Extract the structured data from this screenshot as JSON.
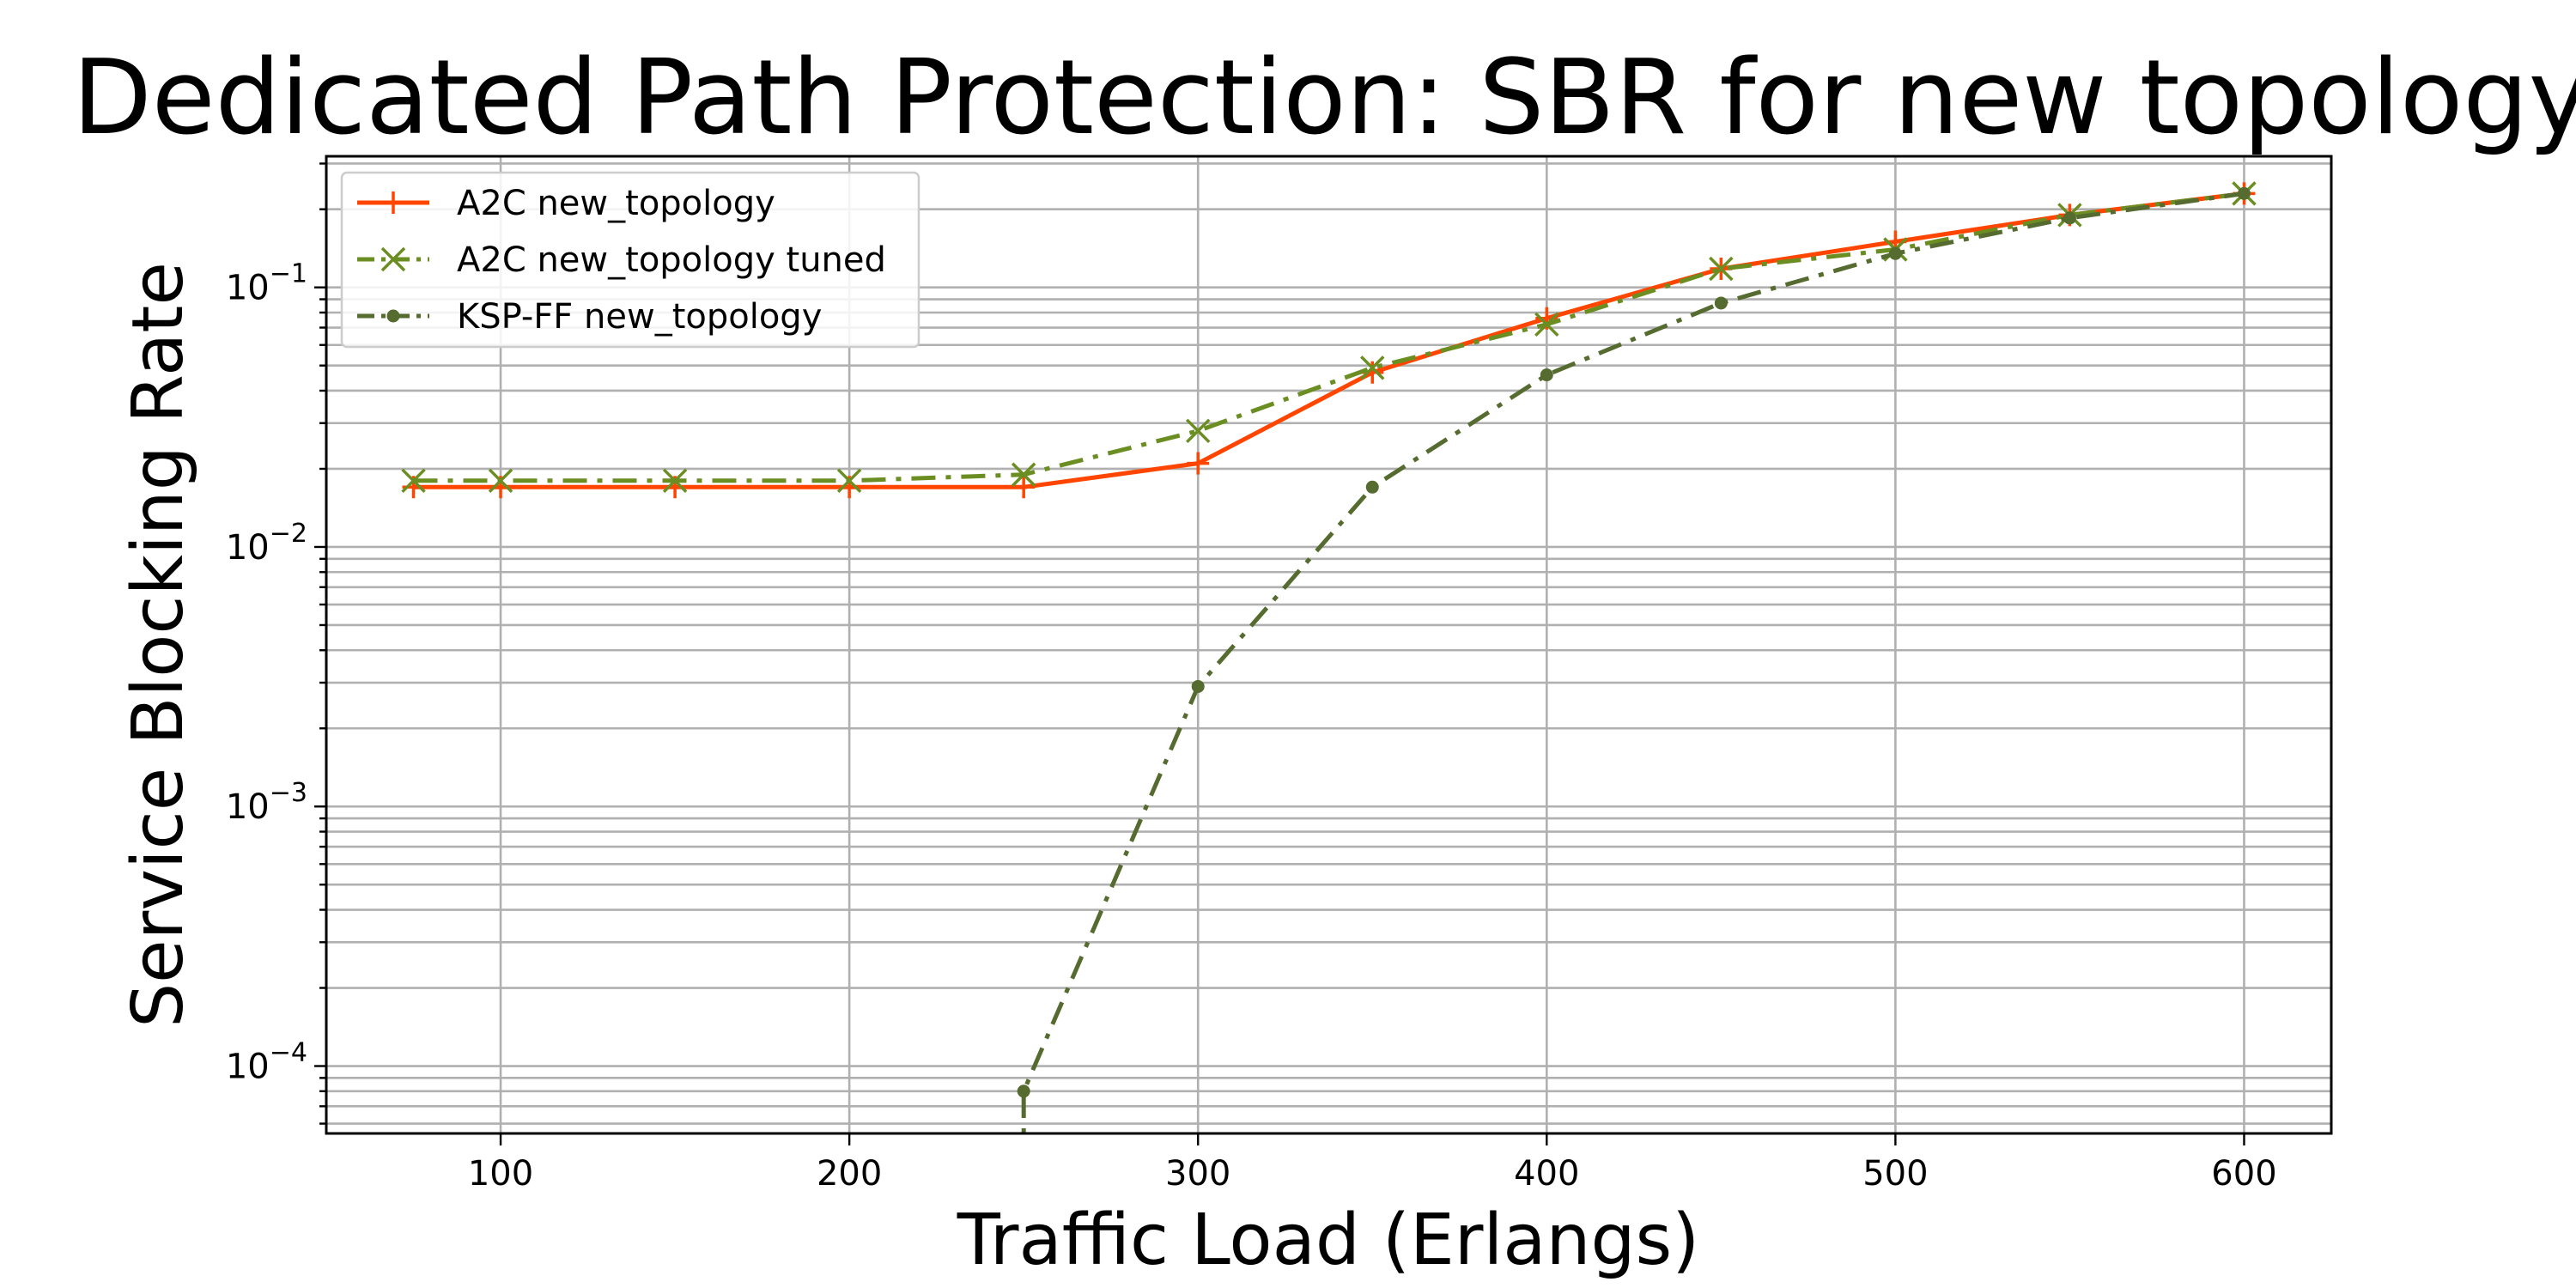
{
  "chart_data": {
    "type": "line",
    "title": "Dedicated Path Protection: SBR for new topology",
    "xlabel": "Traffic Load (Erlangs)",
    "ylabel": "Service Blocking Rate",
    "yscale": "log",
    "grid": true,
    "grid_minor": true,
    "legend_position": "top-left",
    "xlim": [
      50,
      625
    ],
    "ylim": [
      5.5e-05,
      0.32
    ],
    "x_ticks": [
      100,
      200,
      300,
      400,
      500,
      600
    ],
    "x_tick_labels": [
      "100",
      "200",
      "300",
      "400",
      "500",
      "600"
    ],
    "y_ticks": [
      0.0001,
      0.001,
      0.01,
      0.1
    ],
    "y_tick_labels": [
      {
        "base": "10",
        "exp": "−4"
      },
      {
        "base": "10",
        "exp": "−3"
      },
      {
        "base": "10",
        "exp": "−2"
      },
      {
        "base": "10",
        "exp": "−1"
      }
    ],
    "series": [
      {
        "name": "A2C new_topology",
        "color": "#ff4500",
        "line_style": "solid",
        "marker": "plus",
        "x": [
          75,
          100,
          150,
          200,
          250,
          300,
          350,
          400,
          450,
          500,
          550,
          600
        ],
        "values": [
          0.017,
          0.017,
          0.017,
          0.017,
          0.017,
          0.021,
          0.047,
          0.076,
          0.118,
          0.15,
          0.19,
          0.23
        ]
      },
      {
        "name": "A2C new_topology tuned",
        "color": "#6b8e23",
        "line_style": "dashdot",
        "marker": "x",
        "x": [
          75,
          100,
          150,
          200,
          250,
          300,
          350,
          400,
          450,
          500,
          550,
          600
        ],
        "values": [
          0.018,
          0.018,
          0.018,
          0.018,
          0.019,
          0.028,
          0.049,
          0.072,
          0.118,
          0.14,
          0.19,
          0.23
        ]
      },
      {
        "name": "KSP-FF new_topology",
        "color": "#556b2f",
        "line_style": "dashdot",
        "marker": "dot",
        "x": [
          250,
          300,
          350,
          400,
          450,
          500,
          550,
          600
        ],
        "values": [
          8e-05,
          0.0029,
          0.017,
          0.046,
          0.087,
          0.135,
          0.185,
          0.23
        ]
      }
    ]
  }
}
